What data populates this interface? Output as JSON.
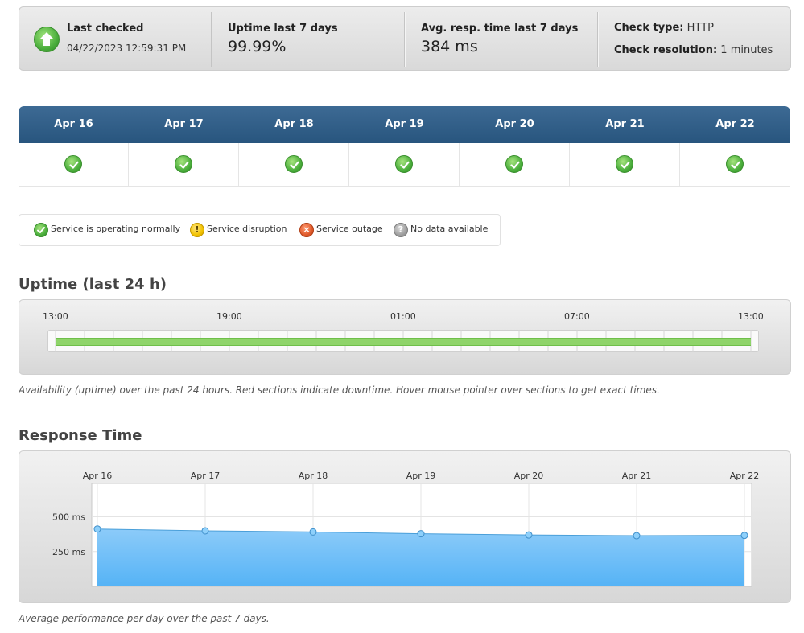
{
  "summary": {
    "last_checked_label": "Last checked",
    "last_checked_value": "04/22/2023 12:59:31 PM",
    "uptime_label": "Uptime last 7 days",
    "uptime_value": "99.99%",
    "resp_label": "Avg. resp. time last 7 days",
    "resp_value": "384 ms",
    "check_type_label": "Check type:",
    "check_type_value": "HTTP",
    "resolution_label": "Check resolution:",
    "resolution_value": "1 minutes",
    "status_icon": "up-arrow-icon",
    "status_color": "#4caf3d"
  },
  "days": [
    {
      "label": "Apr 16",
      "status": "Service is operating normally"
    },
    {
      "label": "Apr 17",
      "status": "Service is operating normally"
    },
    {
      "label": "Apr 18",
      "status": "Service is operating normally"
    },
    {
      "label": "Apr 19",
      "status": "Service is operating normally"
    },
    {
      "label": "Apr 20",
      "status": "Service is operating normally"
    },
    {
      "label": "Apr 21",
      "status": "Service is operating normally"
    },
    {
      "label": "Apr 22",
      "status": "Service is operating normally"
    }
  ],
  "legend": [
    {
      "label": "Service is operating normally",
      "icon": "check-circle-icon",
      "color": "#4caf3d"
    },
    {
      "label": "Service disruption",
      "icon": "warning-circle-icon",
      "color": "#f2c200"
    },
    {
      "label": "Service outage",
      "icon": "x-circle-icon",
      "color": "#e05a2b"
    },
    {
      "label": "No data available",
      "icon": "question-circle-icon",
      "color": "#9a9a9a"
    }
  ],
  "uptime": {
    "title": "Uptime (last 24 h)",
    "ticks": [
      "13:00",
      "19:00",
      "01:00",
      "07:00",
      "13:00"
    ],
    "uptime_fraction": 1.0,
    "bar_color": "#8fd46a",
    "caption": "Availability (uptime) over the past 24 hours. Red sections indicate downtime. Hover mouse pointer over sections to get exact times."
  },
  "response": {
    "title": "Response Time",
    "caption": "Average performance per day over the past 7 days."
  },
  "chart_data": {
    "type": "area",
    "categories": [
      "Apr 16",
      "Apr 17",
      "Apr 18",
      "Apr 19",
      "Apr 20",
      "Apr 21",
      "Apr 22"
    ],
    "series": [
      {
        "values": [
          412,
          399,
          391,
          378,
          369,
          364,
          366
        ]
      }
    ],
    "ylabel": "",
    "yticks": [
      "500 ms",
      "250 ms"
    ],
    "ytick_values": [
      500,
      250
    ],
    "ylim": [
      0,
      740
    ],
    "color": "#6cbef8",
    "grid": true
  }
}
